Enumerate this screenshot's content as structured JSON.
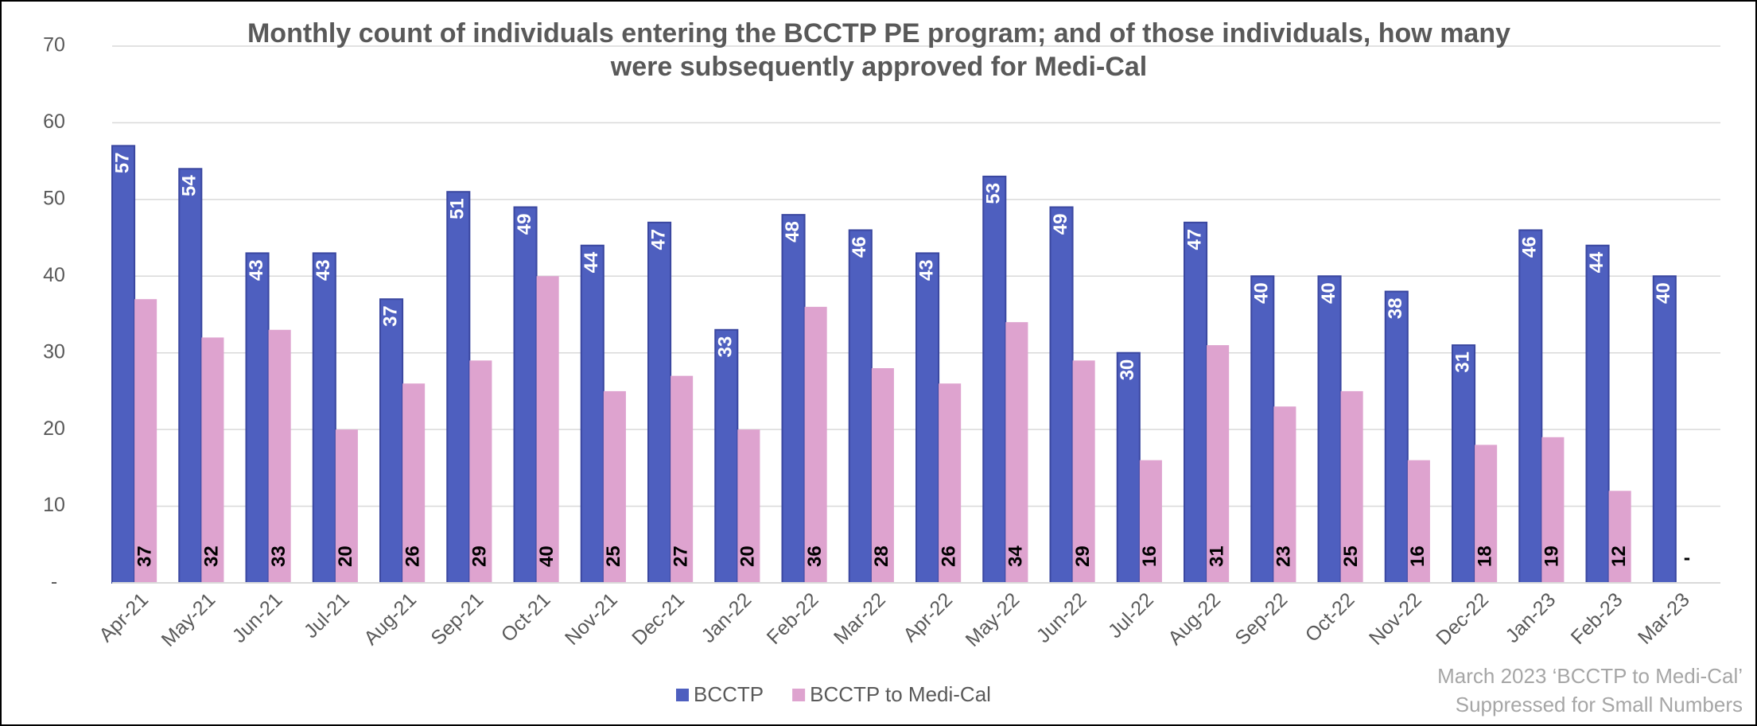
{
  "chart_data": {
    "type": "bar",
    "title": [
      "Monthly count of individuals entering the BCCTP PE program; and of those individuals, how many",
      "were subsequently approved for Medi-Cal"
    ],
    "categories": [
      "Apr-21",
      "May-21",
      "Jun-21",
      "Jul-21",
      "Aug-21",
      "Sep-21",
      "Oct-21",
      "Nov-21",
      "Dec-21",
      "Jan-22",
      "Feb-22",
      "Mar-22",
      "Apr-22",
      "May-22",
      "Jun-22",
      "Jul-22",
      "Aug-22",
      "Sep-22",
      "Oct-22",
      "Nov-22",
      "Dec-22",
      "Jan-23",
      "Feb-23",
      "Mar-23"
    ],
    "series": [
      {
        "name": "BCCTP",
        "color": "#4e5fbf",
        "values": [
          57,
          54,
          43,
          43,
          37,
          51,
          49,
          44,
          47,
          33,
          48,
          46,
          43,
          53,
          49,
          30,
          47,
          40,
          40,
          38,
          31,
          46,
          44,
          40
        ]
      },
      {
        "name": "BCCTP to Medi-Cal",
        "color": "#dea3cf",
        "values": [
          37,
          32,
          33,
          20,
          26,
          29,
          40,
          25,
          27,
          20,
          36,
          28,
          26,
          34,
          29,
          16,
          31,
          23,
          25,
          16,
          18,
          19,
          12,
          null
        ],
        "value_labels": [
          "37",
          "32",
          "33",
          "20",
          "26",
          "29",
          "40",
          "25",
          "27",
          "20",
          "36",
          "28",
          "26",
          "34",
          "29",
          "16",
          "31",
          "23",
          "25",
          "16",
          "18",
          "19",
          "12",
          "-"
        ]
      }
    ],
    "ylim": [
      0,
      70
    ],
    "yticks": [
      {
        "value": 0,
        "label": "-"
      },
      10,
      20,
      30,
      40,
      50,
      60,
      70
    ],
    "grid": true,
    "legend": "bottom",
    "annotation": [
      "March 2023 ‘BCCTP to Medi-Cal’",
      "Suppressed for Small Numbers"
    ]
  }
}
